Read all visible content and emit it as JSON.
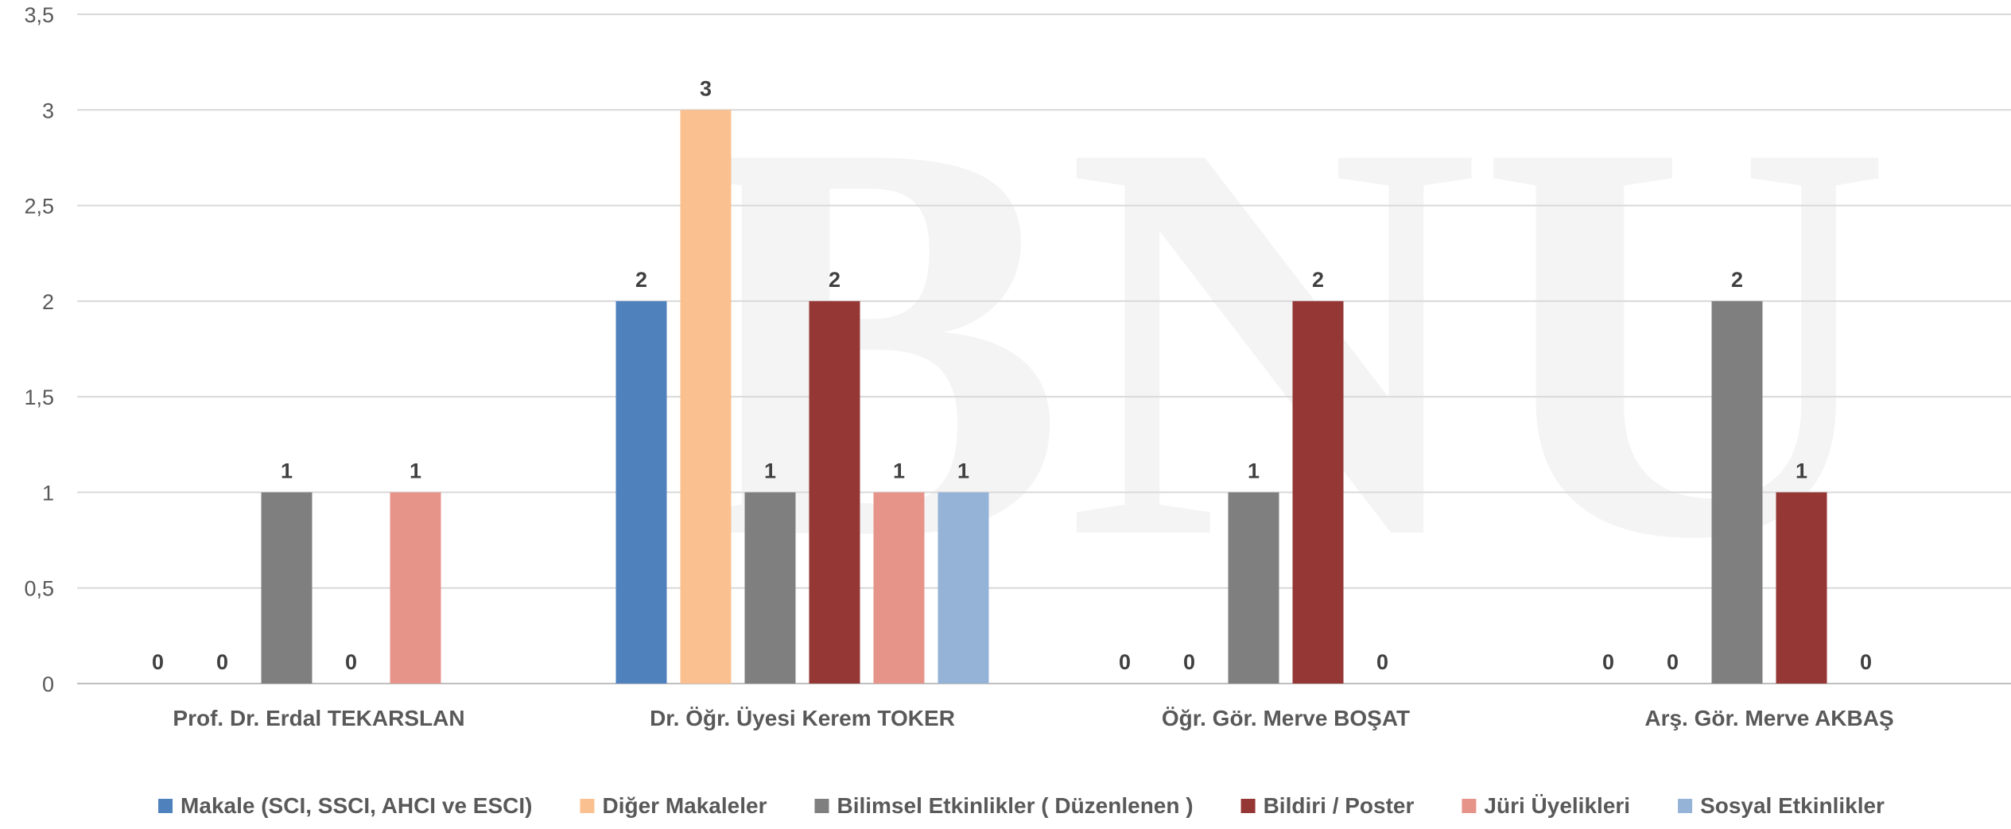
{
  "chart_data": {
    "type": "bar",
    "title": "",
    "xlabel": "",
    "ylabel": "",
    "ylim": [
      0,
      3.5
    ],
    "yticks": [
      "0",
      "0,5",
      "1",
      "1,5",
      "2",
      "2,5",
      "3",
      "3,5"
    ],
    "grid": true,
    "legend_position": "bottom",
    "watermark": "BNU",
    "categories": [
      "Prof. Dr. Erdal TEKARSLAN",
      "Dr. Öğr. Üyesi Kerem TOKER",
      "Öğr. Gör. Merve BOŞAT",
      "Arş. Gör. Merve AKBAŞ"
    ],
    "series": [
      {
        "name": "Makale (SCI, SSCI, AHCI ve ESCI)",
        "color": "#4f81bd",
        "values": [
          0,
          2,
          0,
          0
        ]
      },
      {
        "name": "Diğer Makaleler",
        "color": "#fac090",
        "values": [
          0,
          3,
          0,
          0
        ]
      },
      {
        "name": "Bilimsel Etkinlikler ( Düzenlenen )",
        "color": "#7f7f7f",
        "values": [
          1,
          1,
          1,
          2
        ]
      },
      {
        "name": "Bildiri / Poster",
        "color": "#953735",
        "values": [
          0,
          2,
          2,
          1
        ]
      },
      {
        "name": "Jüri Üyelikleri",
        "color": "#e6948a",
        "values": [
          1,
          1,
          0,
          0
        ]
      },
      {
        "name": "Sosyal Etkinlikler",
        "color": "#95b3d7",
        "values": [
          null,
          1,
          null,
          null
        ]
      }
    ]
  }
}
